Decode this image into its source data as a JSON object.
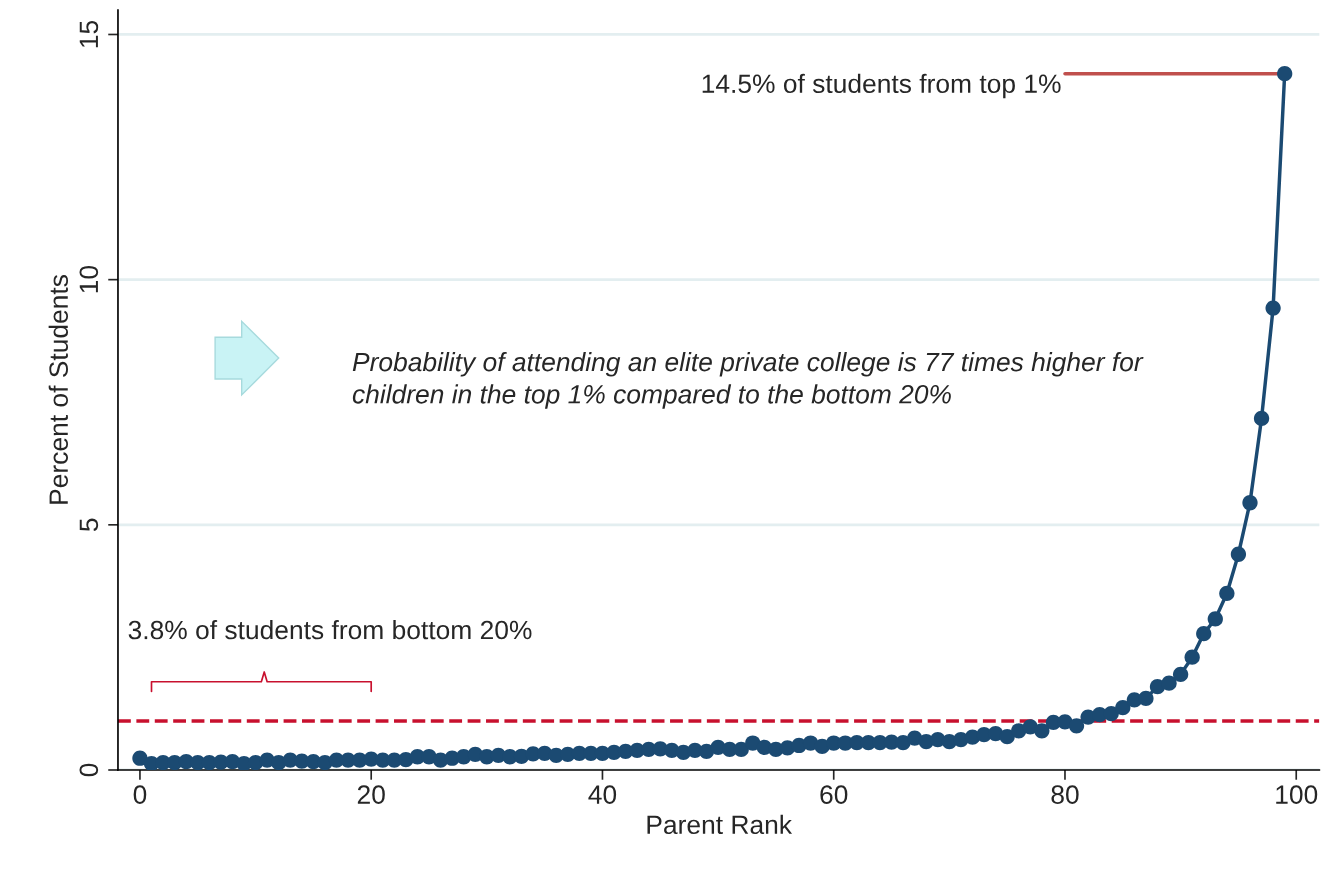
{
  "chart_data": {
    "type": "line",
    "xlabel": "Parent Rank",
    "ylabel": "Percent of Students",
    "x": [
      0,
      1,
      2,
      3,
      4,
      5,
      6,
      7,
      8,
      9,
      10,
      11,
      12,
      13,
      14,
      15,
      16,
      17,
      18,
      19,
      20,
      21,
      22,
      23,
      24,
      25,
      26,
      27,
      28,
      29,
      30,
      31,
      32,
      33,
      34,
      35,
      36,
      37,
      38,
      39,
      40,
      41,
      42,
      43,
      44,
      45,
      46,
      47,
      48,
      49,
      50,
      51,
      52,
      53,
      54,
      55,
      56,
      57,
      58,
      59,
      60,
      61,
      62,
      63,
      64,
      65,
      66,
      67,
      68,
      69,
      70,
      71,
      72,
      73,
      74,
      75,
      76,
      77,
      78,
      79,
      80,
      81,
      82,
      83,
      84,
      85,
      86,
      87,
      88,
      89,
      90,
      91,
      92,
      93,
      94,
      95,
      96,
      97,
      98,
      99
    ],
    "series": [
      {
        "color": "#1b4a72",
        "values": [
          0.24,
          0.13,
          0.15,
          0.15,
          0.17,
          0.15,
          0.15,
          0.16,
          0.17,
          0.13,
          0.15,
          0.2,
          0.15,
          0.2,
          0.18,
          0.17,
          0.15,
          0.2,
          0.2,
          0.2,
          0.22,
          0.2,
          0.2,
          0.21,
          0.27,
          0.27,
          0.2,
          0.24,
          0.27,
          0.32,
          0.27,
          0.3,
          0.27,
          0.28,
          0.33,
          0.34,
          0.3,
          0.32,
          0.34,
          0.34,
          0.34,
          0.36,
          0.38,
          0.4,
          0.42,
          0.43,
          0.4,
          0.36,
          0.4,
          0.38,
          0.46,
          0.42,
          0.42,
          0.55,
          0.46,
          0.42,
          0.45,
          0.5,
          0.55,
          0.48,
          0.55,
          0.55,
          0.56,
          0.56,
          0.56,
          0.57,
          0.56,
          0.65,
          0.58,
          0.62,
          0.58,
          0.62,
          0.67,
          0.72,
          0.74,
          0.68,
          0.8,
          0.88,
          0.8,
          0.97,
          0.98,
          0.9,
          1.08,
          1.13,
          1.15,
          1.27,
          1.43,
          1.46,
          1.7,
          1.77,
          1.95,
          2.3,
          2.78,
          3.08,
          3.6,
          4.4,
          5.45,
          7.17,
          9.42,
          14.2
        ]
      }
    ],
    "xlim": [
      -1.9,
      102
    ],
    "ylim": [
      0,
      15.5
    ],
    "xticks": [
      0,
      20,
      40,
      60,
      80,
      100
    ],
    "yticks": [
      0,
      5,
      10,
      15
    ],
    "grid": "y",
    "marker": "circle",
    "line_style": "solid",
    "ref_lines": [
      {
        "axis": "y",
        "value": 1,
        "color": "#c8102e",
        "line_style": "dashed"
      }
    ],
    "annotations": [
      {
        "text": "14.5% of students from top 1%",
        "x": 99,
        "y": 14.2
      },
      "3.8% of students from bottom 20%",
      "Probability of attending an elite private college is 77 times higher for children in the top 1% compared to the bottom 20%"
    ]
  }
}
